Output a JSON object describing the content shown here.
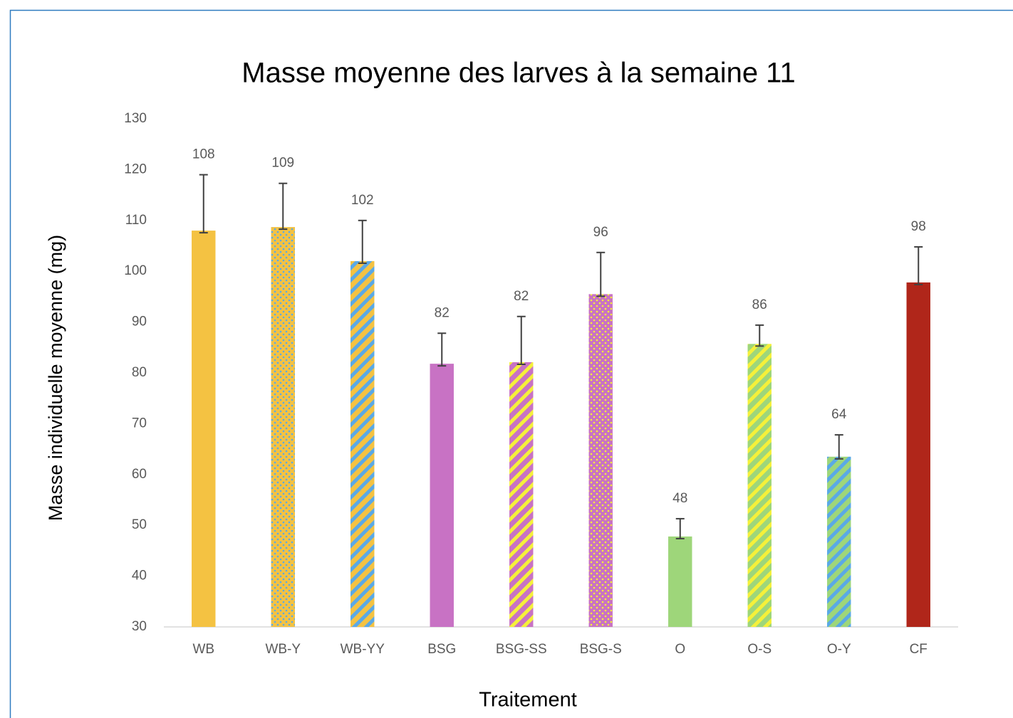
{
  "chart_data": {
    "type": "bar",
    "title": "Masse moyenne des larves à la semaine 11",
    "y_label": "Masse individuelle moyenne (mg)",
    "x_label": "Traitement",
    "categories": [
      "WB",
      "WB-Y",
      "WB-YY",
      "BSG",
      "BSG-SS",
      "BSG-S",
      "O",
      "O-S",
      "O-Y",
      "CF"
    ],
    "values": [
      108,
      108.7,
      102,
      81.8,
      82.1,
      95.5,
      47.8,
      85.7,
      63.5,
      97.8
    ],
    "value_labels": [
      "108",
      "109",
      "102",
      "82",
      "82",
      "96",
      "48",
      "86",
      "64",
      "98"
    ],
    "errors": [
      11,
      8.6,
      8,
      6,
      9,
      8.2,
      3.5,
      3.7,
      4.3,
      7
    ],
    "colors": [
      "#f4c242",
      "#f4c242",
      "#f4c242",
      "#c872c4",
      "#c872c4",
      "#c872c4",
      "#9ed67a",
      "#9ed67a",
      "#9ed67a",
      "#b0261a"
    ],
    "patterns": [
      "solid",
      "dots",
      "stripes",
      "solid",
      "stripes",
      "dots",
      "solid",
      "stripes",
      "stripes",
      "solid"
    ],
    "pattern_colors": [
      "#f4c242",
      "#5aa9e6",
      "#5aa9e6",
      "#c872c4",
      "#f5f03a",
      "#f5f03a",
      "#9ed67a",
      "#f5f03a",
      "#5aa9e6",
      "#b0261a"
    ],
    "ylim": [
      30,
      130
    ],
    "yticks": [
      30,
      40,
      50,
      60,
      70,
      80,
      90,
      100,
      110,
      120,
      130
    ],
    "grid": false
  }
}
